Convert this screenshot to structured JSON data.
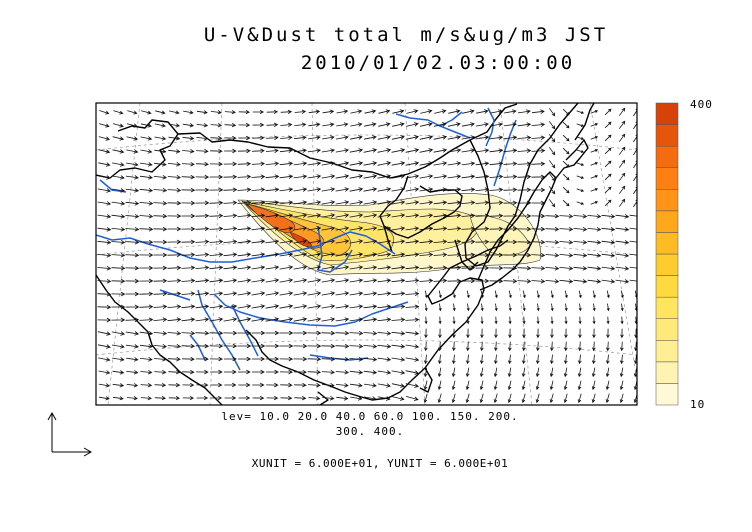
{
  "title": {
    "line1": "U-V&Dust total m/s&ug/m3 JST",
    "line2": "2010/01/02.03:00:00"
  },
  "contour_levels": {
    "line1": "lev= 10.0 20.0 40.0 60.0 100. 150. 200.",
    "line2": "300. 400."
  },
  "vector_units": "XUNIT = 6.000E+01, YUNIT = 6.000E+01",
  "colorbar": {
    "max_label": "400",
    "min_label": "10",
    "colors": [
      "#fff9d6",
      "#fff3b4",
      "#ffee94",
      "#ffe979",
      "#ffe45f",
      "#ffda3e",
      "#ffcc2d",
      "#ffbb22",
      "#ffa81c",
      "#ff9416",
      "#ff7f12",
      "#f56b0e",
      "#e5550a",
      "#d54308"
    ]
  },
  "colors": {
    "coastline": "#000000",
    "rivers": "#1e5fd8",
    "vectors": "#111111",
    "dust_high": "#e0450a",
    "dust_low": "#fffbd8"
  }
}
